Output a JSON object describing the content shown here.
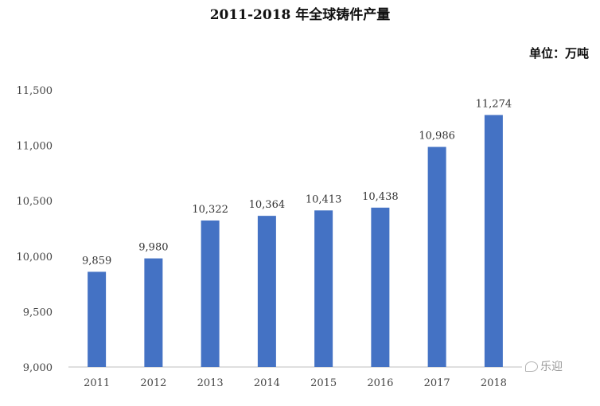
{
  "chart_data": {
    "type": "bar",
    "title": "2011-2018 年全球铸件产量",
    "unit_label": "单位：万吨",
    "categories": [
      "2011",
      "2012",
      "2013",
      "2014",
      "2015",
      "2016",
      "2017",
      "2018"
    ],
    "values": [
      9859,
      9980,
      10322,
      10364,
      10413,
      10438,
      10986,
      11274
    ],
    "data_labels": [
      "9,859",
      "9,980",
      "10,322",
      "10,364",
      "10,413",
      "10,438",
      "10,986",
      "11,274"
    ],
    "ylim": [
      9000,
      11500
    ],
    "yticks": [
      9000,
      9500,
      10000,
      10500,
      11000,
      11500
    ],
    "ytick_labels": [
      "9,000",
      "9,500",
      "10,000",
      "10,500",
      "11,000",
      "11,500"
    ],
    "xlabel": "",
    "ylabel": "",
    "grid": false,
    "legend": "none",
    "bar_color": "#4472C4"
  },
  "watermark": {
    "text": "乐迎",
    "icon": "chat-bubble-icon"
  }
}
